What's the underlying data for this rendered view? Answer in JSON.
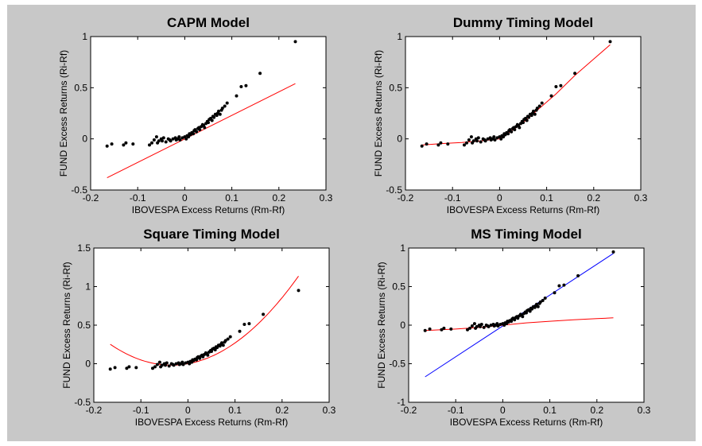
{
  "window": {
    "background": "#c8c8c8"
  },
  "colors": {
    "points": "#000000",
    "fit": "#ff0000",
    "fit_alt": "#0000ff",
    "axes_bg": "#ffffff"
  },
  "chart_data": [
    {
      "type": "scatter",
      "title": "CAPM Model",
      "xlabel": "IBOVESPA Excess Returns (Rm-Rf)",
      "ylabel": "FUND Excess Returns (Ri-Rf)",
      "xlim": [
        -0.2,
        0.3
      ],
      "ylim": [
        -0.5,
        1
      ],
      "xticks": [
        -0.2,
        -0.1,
        0,
        0.1,
        0.2,
        0.3
      ],
      "yticks": [
        -0.5,
        0,
        0.5,
        1
      ],
      "xtick_labels": [
        "-0.2",
        "-0.1",
        "0",
        "0.1",
        "0.2",
        "0.3"
      ],
      "ytick_labels": [
        "-0.5",
        "0",
        "0.5",
        "1"
      ],
      "grid": false,
      "fit_lines": [
        {
          "color": "#ff0000",
          "x": [
            -0.165,
            0.235
          ],
          "y": [
            -0.38,
            0.54
          ]
        }
      ]
    },
    {
      "type": "scatter",
      "title": "Dummy Timing Model",
      "xlabel": "IBOVESPA Excess Returns (Rm-Rf)",
      "ylabel": "FUND Excess Returns (Ri-Rf)",
      "xlim": [
        -0.2,
        0.3
      ],
      "ylim": [
        -0.5,
        1
      ],
      "xticks": [
        -0.2,
        -0.1,
        0,
        0.1,
        0.2,
        0.3
      ],
      "yticks": [
        -0.5,
        0,
        0.5,
        1
      ],
      "xtick_labels": [
        "-0.2",
        "-0.1",
        "0",
        "0.1",
        "0.2",
        "0.3"
      ],
      "ytick_labels": [
        "-0.5",
        "0",
        "0.5",
        "1"
      ],
      "grid": false,
      "fit_lines": [
        {
          "color": "#ff0000",
          "x": [
            -0.165,
            -0.12,
            -0.08,
            -0.04,
            -0.01,
            0.0,
            0.02,
            0.05,
            0.08,
            0.12,
            0.16,
            0.2,
            0.235
          ],
          "y": [
            -0.06,
            -0.045,
            -0.035,
            -0.02,
            -0.005,
            0.0,
            0.06,
            0.16,
            0.28,
            0.44,
            0.62,
            0.78,
            0.92
          ]
        }
      ]
    },
    {
      "type": "scatter",
      "title": "Square Timing Model",
      "xlabel": "IBOVESPA Excess Returns (Rm-Rf)",
      "ylabel": "FUND Excess Returns (Ri-Rf)",
      "xlim": [
        -0.2,
        0.3
      ],
      "ylim": [
        -0.5,
        1.5
      ],
      "xticks": [
        -0.2,
        -0.1,
        0,
        0.1,
        0.2,
        0.3
      ],
      "yticks": [
        -0.5,
        0,
        0.5,
        1,
        1.5
      ],
      "xtick_labels": [
        "-0.2",
        "-0.1",
        "0",
        "0.1",
        "0.2",
        "0.3"
      ],
      "ytick_labels": [
        "-0.5",
        "0",
        "0.5",
        "1",
        "1.5"
      ],
      "grid": false,
      "fit_lines": [
        {
          "color": "#ff0000",
          "curve": "quadratic",
          "x_from": -0.165,
          "x_to": 0.235,
          "coef": [
            0.0,
            1.1,
            15.9
          ]
        }
      ]
    },
    {
      "type": "scatter",
      "title": "MS Timing Model",
      "xlabel": "IBOVESPA Excess Returns (Rm-Rf)",
      "ylabel": "FUND Excess Returns (Ri-Rf)",
      "xlim": [
        -0.2,
        0.3
      ],
      "ylim": [
        -1,
        1
      ],
      "xticks": [
        -0.2,
        -0.1,
        0,
        0.1,
        0.2,
        0.3
      ],
      "yticks": [
        -1,
        -0.5,
        0,
        0.5,
        1
      ],
      "xtick_labels": [
        "-0.2",
        "-0.1",
        "0",
        "0.1",
        "0.2",
        "0.3"
      ],
      "ytick_labels": [
        "-1",
        "-0.5",
        "0",
        "0.5",
        "1"
      ],
      "grid": false,
      "fit_lines": [
        {
          "color": "#0000ff",
          "x": [
            -0.165,
            0.235
          ],
          "y": [
            -0.67,
            0.93
          ]
        },
        {
          "color": "#ff0000",
          "x": [
            -0.165,
            -0.1,
            -0.05,
            0.0,
            0.05,
            0.1,
            0.15,
            0.2,
            0.235
          ],
          "y": [
            -0.07,
            -0.05,
            -0.03,
            0.0,
            0.03,
            0.05,
            0.07,
            0.085,
            0.095
          ]
        }
      ]
    }
  ],
  "points": {
    "x": [
      -0.165,
      -0.155,
      -0.13,
      -0.125,
      -0.11,
      -0.075,
      -0.07,
      -0.065,
      -0.06,
      -0.058,
      -0.055,
      -0.05,
      -0.048,
      -0.045,
      -0.04,
      -0.035,
      -0.032,
      -0.03,
      -0.025,
      -0.02,
      -0.018,
      -0.015,
      -0.012,
      -0.01,
      -0.005,
      0.0,
      0.003,
      0.005,
      0.008,
      0.01,
      0.012,
      0.015,
      0.018,
      0.02,
      0.022,
      0.025,
      0.028,
      0.03,
      0.032,
      0.035,
      0.038,
      0.04,
      0.042,
      0.045,
      0.048,
      0.05,
      0.052,
      0.055,
      0.058,
      0.06,
      0.062,
      0.065,
      0.068,
      0.07,
      0.072,
      0.075,
      0.078,
      0.08,
      0.085,
      0.09,
      0.11,
      0.12,
      0.13,
      0.16,
      0.235
    ],
    "y": [
      -0.07,
      -0.05,
      -0.06,
      -0.04,
      -0.05,
      -0.06,
      -0.04,
      -0.01,
      0.02,
      -0.04,
      -0.02,
      0.0,
      -0.02,
      0.01,
      -0.03,
      0.0,
      -0.01,
      -0.02,
      0.0,
      0.01,
      -0.01,
      0.0,
      0.02,
      -0.01,
      0.01,
      0.02,
      0.0,
      0.03,
      0.02,
      0.05,
      0.04,
      0.06,
      0.05,
      0.08,
      0.09,
      0.07,
      0.1,
      0.11,
      0.09,
      0.12,
      0.14,
      0.13,
      0.11,
      0.15,
      0.17,
      0.16,
      0.19,
      0.2,
      0.18,
      0.22,
      0.21,
      0.24,
      0.23,
      0.25,
      0.27,
      0.24,
      0.28,
      0.3,
      0.32,
      0.35,
      0.42,
      0.51,
      0.52,
      0.64,
      0.95
    ]
  }
}
